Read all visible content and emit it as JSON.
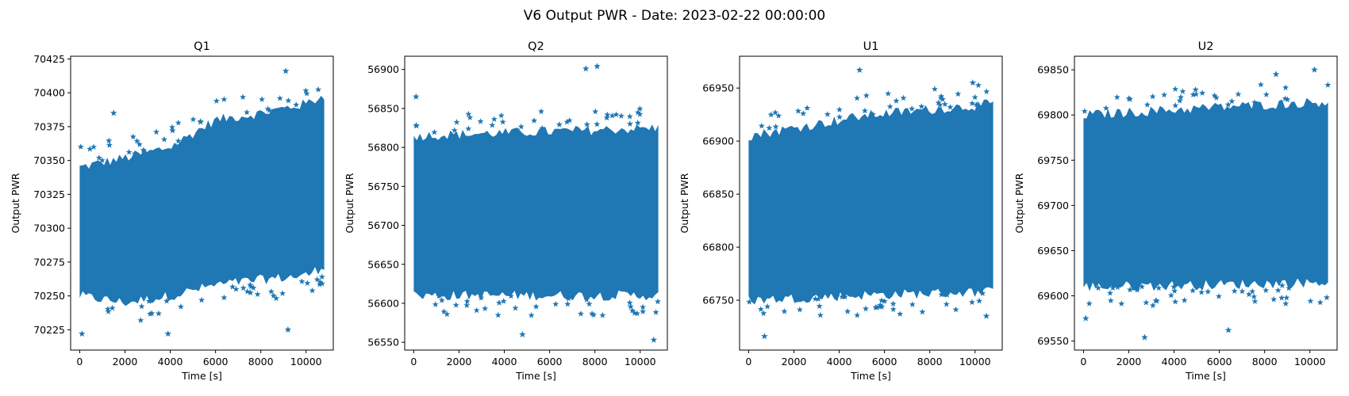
{
  "figure": {
    "suptitle": "V6 Output PWR - Date: 2023-02-22 00:00:00",
    "marker": "star",
    "marker_color": "#1f77b4"
  },
  "chart_data": [
    {
      "type": "scatter",
      "title": "Q1",
      "xlabel": "Time [s]",
      "ylabel": "Output PWR",
      "xlim": [
        -400,
        11200
      ],
      "ylim": [
        70210,
        70427
      ],
      "xticks": [
        0,
        2000,
        4000,
        6000,
        8000,
        10000
      ],
      "yticks": [
        70225,
        70250,
        70275,
        70300,
        70325,
        70350,
        70375,
        70400,
        70425
      ],
      "x_range": [
        0,
        10800
      ],
      "band_bottom": [
        [
          0,
          70250
        ],
        [
          2000,
          70245
        ],
        [
          4000,
          70250
        ],
        [
          6000,
          70258
        ],
        [
          8000,
          70262
        ],
        [
          10000,
          70265
        ],
        [
          10800,
          70272
        ]
      ],
      "band_top": [
        [
          0,
          70345
        ],
        [
          2000,
          70352
        ],
        [
          4000,
          70360
        ],
        [
          6000,
          70380
        ],
        [
          8000,
          70385
        ],
        [
          10000,
          70392
        ],
        [
          10800,
          70398
        ]
      ],
      "outliers": [
        [
          9100,
          70416
        ],
        [
          1500,
          70385
        ],
        [
          9200,
          70225
        ],
        [
          3900,
          70222
        ],
        [
          100,
          70222
        ]
      ]
    },
    {
      "type": "scatter",
      "title": "Q2",
      "xlabel": "Time [s]",
      "ylabel": "Output PWR",
      "xlim": [
        -400,
        11200
      ],
      "ylim": [
        56540,
        56917
      ],
      "xticks": [
        0,
        2000,
        4000,
        6000,
        8000,
        10000
      ],
      "yticks": [
        56550,
        56600,
        56650,
        56700,
        56750,
        56800,
        56850,
        56900
      ],
      "x_range": [
        0,
        10800
      ],
      "band_bottom": [
        [
          0,
          56610
        ],
        [
          5400,
          56610
        ],
        [
          10800,
          56610
        ]
      ],
      "band_top": [
        [
          0,
          56815
        ],
        [
          5400,
          56820
        ],
        [
          10800,
          56825
        ]
      ],
      "outliers": [
        [
          8100,
          56904
        ],
        [
          7600,
          56901
        ],
        [
          10600,
          56553
        ],
        [
          4800,
          56560
        ],
        [
          100,
          56865
        ]
      ]
    },
    {
      "type": "scatter",
      "title": "U1",
      "xlabel": "Time [s]",
      "ylabel": "Output PWR",
      "xlim": [
        -400,
        11200
      ],
      "ylim": [
        66703,
        66980
      ],
      "xticks": [
        0,
        2000,
        4000,
        6000,
        8000,
        10000
      ],
      "yticks": [
        66750,
        66800,
        66850,
        66900,
        66950
      ],
      "x_range": [
        0,
        10800
      ],
      "band_bottom": [
        [
          0,
          66750
        ],
        [
          5400,
          66755
        ],
        [
          10800,
          66758
        ]
      ],
      "band_top": [
        [
          0,
          66905
        ],
        [
          5400,
          66925
        ],
        [
          10800,
          66935
        ]
      ],
      "outliers": [
        [
          4900,
          66967
        ],
        [
          700,
          66716
        ],
        [
          9900,
          66955
        ],
        [
          10500,
          66735
        ]
      ]
    },
    {
      "type": "scatter",
      "title": "U2",
      "xlabel": "Time [s]",
      "ylabel": "Output PWR",
      "xlim": [
        -400,
        11200
      ],
      "ylim": [
        69540,
        69865
      ],
      "xticks": [
        0,
        2000,
        4000,
        6000,
        8000,
        10000
      ],
      "yticks": [
        69550,
        69600,
        69650,
        69700,
        69750,
        69800,
        69850
      ],
      "x_range": [
        0,
        10800
      ],
      "band_bottom": [
        [
          0,
          69610
        ],
        [
          5400,
          69612
        ],
        [
          10800,
          69615
        ]
      ],
      "band_top": [
        [
          0,
          69800
        ],
        [
          5400,
          69808
        ],
        [
          10800,
          69815
        ]
      ],
      "outliers": [
        [
          10200,
          69850
        ],
        [
          8500,
          69845
        ],
        [
          2700,
          69554
        ],
        [
          6400,
          69562
        ],
        [
          100,
          69575
        ]
      ]
    }
  ]
}
